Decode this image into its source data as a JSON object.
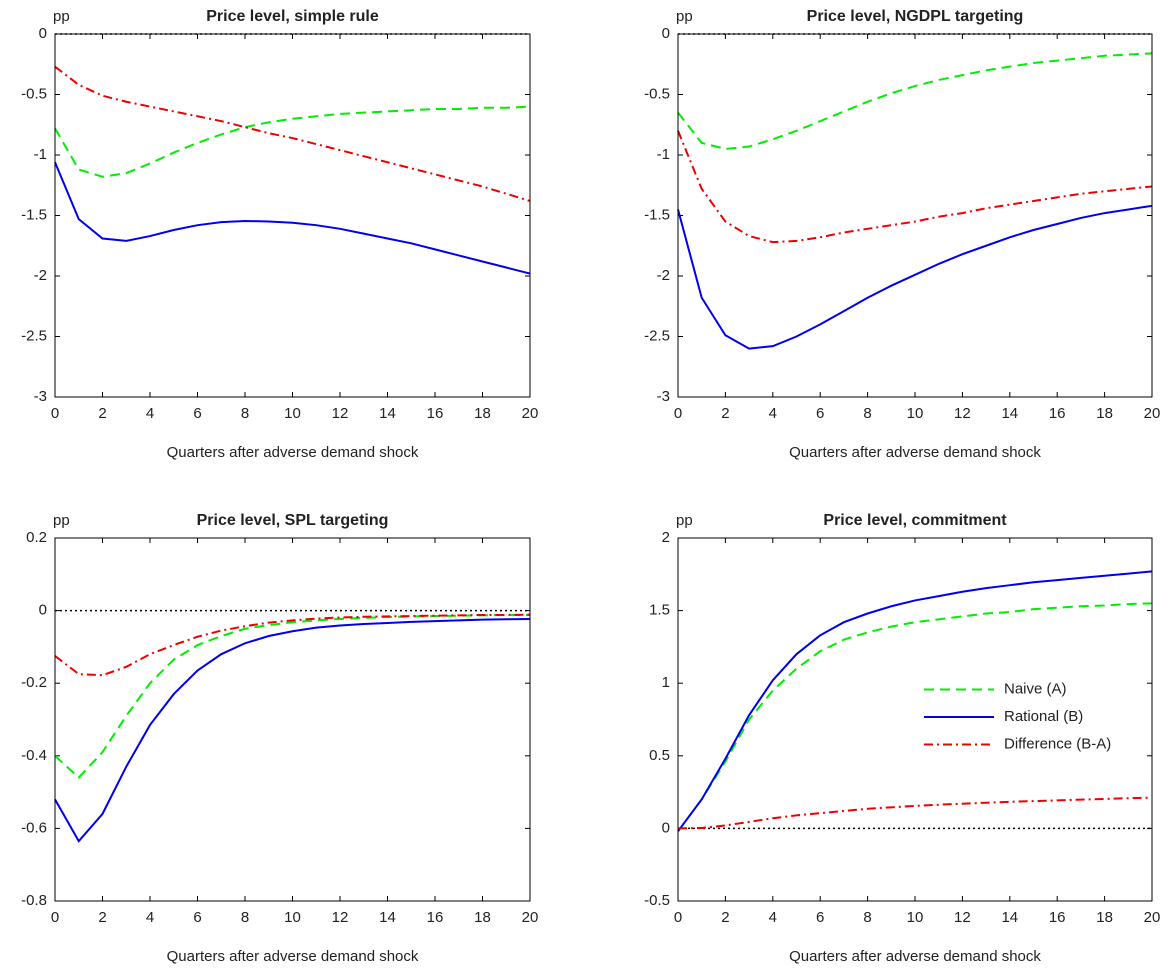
{
  "chart_data": [
    {
      "type": "line",
      "title": "Price level, simple rule",
      "ylabel": "pp",
      "xlabel": "Quarters after adverse demand shock",
      "x": [
        0,
        1,
        2,
        3,
        4,
        5,
        6,
        7,
        8,
        9,
        10,
        11,
        12,
        13,
        14,
        15,
        16,
        17,
        18,
        19,
        20
      ],
      "xlim": [
        0,
        20
      ],
      "xticks": [
        0,
        2,
        4,
        6,
        8,
        10,
        12,
        14,
        16,
        18,
        20
      ],
      "ylim": [
        -3,
        0
      ],
      "yticks": [
        -3,
        -2.5,
        -2,
        -1.5,
        -1,
        -0.5,
        0
      ],
      "reference_line": 0,
      "series": [
        {
          "color": "#00ee00",
          "dash": "dashed",
          "values": [
            -0.78,
            -1.12,
            -1.18,
            -1.15,
            -1.07,
            -0.98,
            -0.9,
            -0.83,
            -0.77,
            -0.73,
            -0.7,
            -0.68,
            -0.66,
            -0.65,
            -0.64,
            -0.63,
            -0.62,
            -0.62,
            -0.61,
            -0.61,
            -0.6
          ]
        },
        {
          "color": "#0000ee",
          "dash": "solid",
          "values": [
            -1.06,
            -1.53,
            -1.69,
            -1.71,
            -1.67,
            -1.62,
            -1.58,
            -1.555,
            -1.545,
            -1.55,
            -1.56,
            -1.58,
            -1.61,
            -1.65,
            -1.69,
            -1.73,
            -1.78,
            -1.83,
            -1.88,
            -1.93,
            -1.98
          ]
        },
        {
          "color": "#ee0000",
          "dash": "dashdot",
          "values": [
            -0.27,
            -0.42,
            -0.51,
            -0.56,
            -0.6,
            -0.64,
            -0.68,
            -0.72,
            -0.77,
            -0.82,
            -0.86,
            -0.91,
            -0.96,
            -1.01,
            -1.06,
            -1.11,
            -1.16,
            -1.21,
            -1.26,
            -1.32,
            -1.38
          ]
        }
      ]
    },
    {
      "type": "line",
      "title": "Price level, NGDPL targeting",
      "ylabel": "pp",
      "xlabel": "Quarters after adverse demand shock",
      "x": [
        0,
        1,
        2,
        3,
        4,
        5,
        6,
        7,
        8,
        9,
        10,
        11,
        12,
        13,
        14,
        15,
        16,
        17,
        18,
        19,
        20
      ],
      "xlim": [
        0,
        20
      ],
      "xticks": [
        0,
        2,
        4,
        6,
        8,
        10,
        12,
        14,
        16,
        18,
        20
      ],
      "ylim": [
        -3,
        0
      ],
      "yticks": [
        -3,
        -2.5,
        -2,
        -1.5,
        -1,
        -0.5,
        0
      ],
      "reference_line": 0,
      "series": [
        {
          "color": "#00ee00",
          "dash": "dashed",
          "values": [
            -0.65,
            -0.9,
            -0.95,
            -0.93,
            -0.87,
            -0.8,
            -0.72,
            -0.64,
            -0.56,
            -0.49,
            -0.43,
            -0.38,
            -0.34,
            -0.3,
            -0.27,
            -0.24,
            -0.22,
            -0.2,
            -0.18,
            -0.17,
            -0.16
          ]
        },
        {
          "color": "#0000ee",
          "dash": "solid",
          "values": [
            -1.45,
            -2.18,
            -2.49,
            -2.6,
            -2.58,
            -2.5,
            -2.4,
            -2.29,
            -2.18,
            -2.08,
            -1.99,
            -1.9,
            -1.82,
            -1.75,
            -1.68,
            -1.62,
            -1.57,
            -1.52,
            -1.48,
            -1.45,
            -1.42
          ]
        },
        {
          "color": "#ee0000",
          "dash": "dashdot",
          "values": [
            -0.8,
            -1.28,
            -1.55,
            -1.67,
            -1.72,
            -1.71,
            -1.68,
            -1.64,
            -1.61,
            -1.58,
            -1.55,
            -1.51,
            -1.48,
            -1.44,
            -1.41,
            -1.38,
            -1.35,
            -1.32,
            -1.3,
            -1.28,
            -1.26
          ]
        }
      ]
    },
    {
      "type": "line",
      "title": "Price level, SPL targeting",
      "ylabel": "pp",
      "xlabel": "Quarters after adverse demand shock",
      "x": [
        0,
        1,
        2,
        3,
        4,
        5,
        6,
        7,
        8,
        9,
        10,
        11,
        12,
        13,
        14,
        15,
        16,
        17,
        18,
        19,
        20
      ],
      "xlim": [
        0,
        20
      ],
      "xticks": [
        0,
        2,
        4,
        6,
        8,
        10,
        12,
        14,
        16,
        18,
        20
      ],
      "ylim": [
        -0.8,
        0.2
      ],
      "yticks": [
        -0.8,
        -0.6,
        -0.4,
        -0.2,
        0,
        0.2
      ],
      "reference_line": 0,
      "series": [
        {
          "color": "#00ee00",
          "dash": "dashed",
          "values": [
            -0.4,
            -0.46,
            -0.39,
            -0.29,
            -0.2,
            -0.135,
            -0.095,
            -0.07,
            -0.05,
            -0.04,
            -0.032,
            -0.027,
            -0.023,
            -0.02,
            -0.018,
            -0.016,
            -0.015,
            -0.014,
            -0.013,
            -0.012,
            -0.012
          ]
        },
        {
          "color": "#0000ee",
          "dash": "solid",
          "values": [
            -0.52,
            -0.635,
            -0.56,
            -0.43,
            -0.315,
            -0.23,
            -0.165,
            -0.12,
            -0.09,
            -0.07,
            -0.057,
            -0.047,
            -0.041,
            -0.037,
            -0.034,
            -0.031,
            -0.029,
            -0.027,
            -0.025,
            -0.024,
            -0.023
          ]
        },
        {
          "color": "#ee0000",
          "dash": "dashdot",
          "values": [
            -0.125,
            -0.175,
            -0.178,
            -0.155,
            -0.12,
            -0.095,
            -0.072,
            -0.055,
            -0.043,
            -0.033,
            -0.027,
            -0.022,
            -0.019,
            -0.017,
            -0.016,
            -0.015,
            -0.014,
            -0.013,
            -0.012,
            -0.012,
            -0.011
          ]
        }
      ]
    },
    {
      "type": "line",
      "title": "Price level, commitment",
      "ylabel": "pp",
      "xlabel": "Quarters after adverse demand shock",
      "x": [
        0,
        1,
        2,
        3,
        4,
        5,
        6,
        7,
        8,
        9,
        10,
        11,
        12,
        13,
        14,
        15,
        16,
        17,
        18,
        19,
        20
      ],
      "xlim": [
        0,
        20
      ],
      "xticks": [
        0,
        2,
        4,
        6,
        8,
        10,
        12,
        14,
        16,
        18,
        20
      ],
      "ylim": [
        -0.5,
        2
      ],
      "yticks": [
        -0.5,
        0,
        0.5,
        1,
        1.5,
        2
      ],
      "reference_line": 0,
      "legend": "right",
      "series": [
        {
          "name": "Naive (A)",
          "color": "#00ee00",
          "dash": "dashed",
          "values": [
            -0.02,
            0.2,
            0.46,
            0.75,
            0.95,
            1.1,
            1.22,
            1.3,
            1.35,
            1.39,
            1.42,
            1.44,
            1.46,
            1.48,
            1.49,
            1.51,
            1.52,
            1.53,
            1.535,
            1.545,
            1.55
          ]
        },
        {
          "name": "Rational (B)",
          "color": "#0000ee",
          "dash": "solid",
          "values": [
            -0.02,
            0.2,
            0.48,
            0.78,
            1.02,
            1.2,
            1.33,
            1.42,
            1.48,
            1.53,
            1.57,
            1.6,
            1.63,
            1.655,
            1.675,
            1.695,
            1.71,
            1.725,
            1.74,
            1.755,
            1.77
          ]
        },
        {
          "name": "Difference (B-A)",
          "color": "#ee0000",
          "dash": "dashdot",
          "values": [
            0,
            0.003,
            0.02,
            0.045,
            0.07,
            0.09,
            0.105,
            0.12,
            0.135,
            0.145,
            0.155,
            0.163,
            0.17,
            0.177,
            0.183,
            0.188,
            0.193,
            0.198,
            0.203,
            0.208,
            0.212
          ]
        }
      ]
    }
  ]
}
